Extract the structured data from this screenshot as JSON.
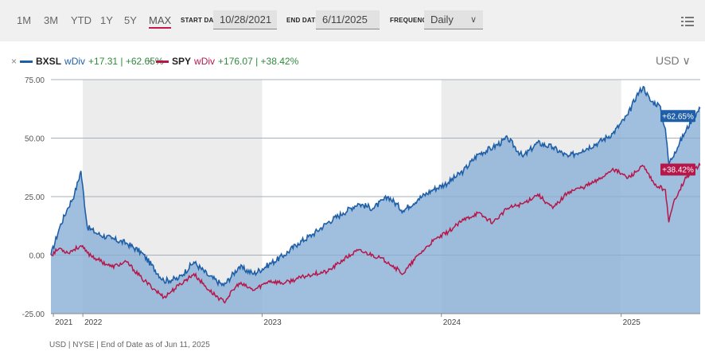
{
  "toolbar": {
    "ranges": [
      "1M",
      "3M",
      "YTD",
      "1Y",
      "5Y",
      "MAX"
    ],
    "active_range": "MAX",
    "start_date_label": "START DATE",
    "start_date": "10/28/2021",
    "end_date_label": "END DATE",
    "end_date": "6/11/2025",
    "frequency_label": "FREQUENCY",
    "frequency": "Daily",
    "menu_icon": "hamburger-list-icon"
  },
  "legend": [
    {
      "close": "×",
      "symbol": "BXSL",
      "tag": "wDiv",
      "change": "+17.31 | +62.65%",
      "color": "#1f5fa8"
    },
    {
      "close": "×",
      "symbol": "SPY",
      "tag": "wDiv",
      "change": "+176.07 | +38.42%",
      "color": "#b5174b"
    }
  ],
  "currency": "USD",
  "footnote": "USD | NYSE | End of Date as of Jun 11, 2025",
  "colors": {
    "bxsl": "#1f5fa8",
    "bxsl_fill": "#8fb4d8",
    "spy": "#b5174b",
    "band": "#ececec",
    "grid": "#b9b9b9"
  },
  "chart_data": {
    "type": "line",
    "x_range": [
      "2021-10-28",
      "2025-06-11"
    ],
    "ylim": [
      -25,
      75
    ],
    "yticks": [
      "75.00",
      "50.00",
      "25.00",
      "0.00",
      "-25.00"
    ],
    "xticks": [
      "2021",
      "2022",
      "2023",
      "2024",
      "2025"
    ],
    "series": [
      {
        "name": "BXSL",
        "end_label": "+62.65%",
        "values": [
          [
            "2021-10-28",
            0
          ],
          [
            "2021-11-15",
            12
          ],
          [
            "2021-12-01",
            20
          ],
          [
            "2021-12-15",
            26
          ],
          [
            "2021-12-28",
            36
          ],
          [
            "2022-01-10",
            12
          ],
          [
            "2022-02-01",
            9
          ],
          [
            "2022-03-01",
            7
          ],
          [
            "2022-04-01",
            5
          ],
          [
            "2022-05-01",
            1
          ],
          [
            "2022-06-15",
            -11
          ],
          [
            "2022-07-15",
            -10
          ],
          [
            "2022-08-15",
            -3
          ],
          [
            "2022-09-15",
            -9
          ],
          [
            "2022-10-15",
            -13
          ],
          [
            "2022-11-15",
            -5
          ],
          [
            "2022-12-15",
            -8
          ],
          [
            "2023-01-15",
            -4
          ],
          [
            "2023-02-15",
            0
          ],
          [
            "2023-03-15",
            5
          ],
          [
            "2023-04-15",
            9
          ],
          [
            "2023-05-15",
            14
          ],
          [
            "2023-06-15",
            18
          ],
          [
            "2023-07-15",
            22
          ],
          [
            "2023-08-15",
            20
          ],
          [
            "2023-09-15",
            25
          ],
          [
            "2023-10-15",
            19
          ],
          [
            "2023-11-15",
            24
          ],
          [
            "2023-12-15",
            28
          ],
          [
            "2024-01-15",
            31
          ],
          [
            "2024-02-15",
            36
          ],
          [
            "2024-03-15",
            43
          ],
          [
            "2024-04-15",
            46
          ],
          [
            "2024-05-15",
            50
          ],
          [
            "2024-06-15",
            42
          ],
          [
            "2024-07-15",
            48
          ],
          [
            "2024-08-15",
            46
          ],
          [
            "2024-09-15",
            42
          ],
          [
            "2024-10-15",
            45
          ],
          [
            "2024-11-15",
            48
          ],
          [
            "2024-12-15",
            52
          ],
          [
            "2025-01-15",
            60
          ],
          [
            "2025-02-01",
            68
          ],
          [
            "2025-02-15",
            72
          ],
          [
            "2025-03-01",
            66
          ],
          [
            "2025-03-20",
            64
          ],
          [
            "2025-04-01",
            54
          ],
          [
            "2025-04-08",
            39
          ],
          [
            "2025-04-20",
            44
          ],
          [
            "2025-05-10",
            52
          ],
          [
            "2025-05-25",
            58
          ],
          [
            "2025-06-11",
            62.65
          ]
        ]
      },
      {
        "name": "SPY",
        "end_label": "+38.42%",
        "values": [
          [
            "2021-10-28",
            0
          ],
          [
            "2021-11-15",
            3
          ],
          [
            "2021-12-01",
            1
          ],
          [
            "2021-12-28",
            4
          ],
          [
            "2022-01-10",
            1
          ],
          [
            "2022-02-01",
            -2
          ],
          [
            "2022-03-01",
            -5
          ],
          [
            "2022-04-01",
            -3
          ],
          [
            "2022-05-01",
            -10
          ],
          [
            "2022-06-15",
            -18
          ],
          [
            "2022-07-15",
            -13
          ],
          [
            "2022-08-15",
            -8
          ],
          [
            "2022-09-15",
            -15
          ],
          [
            "2022-10-15",
            -20
          ],
          [
            "2022-11-15",
            -12
          ],
          [
            "2022-12-15",
            -15
          ],
          [
            "2023-01-15",
            -11
          ],
          [
            "2023-02-15",
            -12
          ],
          [
            "2023-03-15",
            -10
          ],
          [
            "2023-04-15",
            -8
          ],
          [
            "2023-05-15",
            -7
          ],
          [
            "2023-06-15",
            -2
          ],
          [
            "2023-07-15",
            2
          ],
          [
            "2023-08-15",
            0
          ],
          [
            "2023-09-15",
            -3
          ],
          [
            "2023-10-15",
            -8
          ],
          [
            "2023-11-15",
            0
          ],
          [
            "2023-12-15",
            6
          ],
          [
            "2024-01-15",
            10
          ],
          [
            "2024-02-15",
            15
          ],
          [
            "2024-03-15",
            18
          ],
          [
            "2024-04-15",
            14
          ],
          [
            "2024-05-15",
            20
          ],
          [
            "2024-06-15",
            22
          ],
          [
            "2024-07-15",
            26
          ],
          [
            "2024-08-15",
            20
          ],
          [
            "2024-09-15",
            27
          ],
          [
            "2024-10-15",
            29
          ],
          [
            "2024-11-15",
            32
          ],
          [
            "2024-12-15",
            37
          ],
          [
            "2025-01-15",
            33
          ],
          [
            "2025-02-15",
            38
          ],
          [
            "2025-03-10",
            30
          ],
          [
            "2025-04-01",
            28
          ],
          [
            "2025-04-08",
            14
          ],
          [
            "2025-04-20",
            24
          ],
          [
            "2025-05-10",
            32
          ],
          [
            "2025-05-25",
            36
          ],
          [
            "2025-06-11",
            38.42
          ]
        ]
      }
    ]
  }
}
